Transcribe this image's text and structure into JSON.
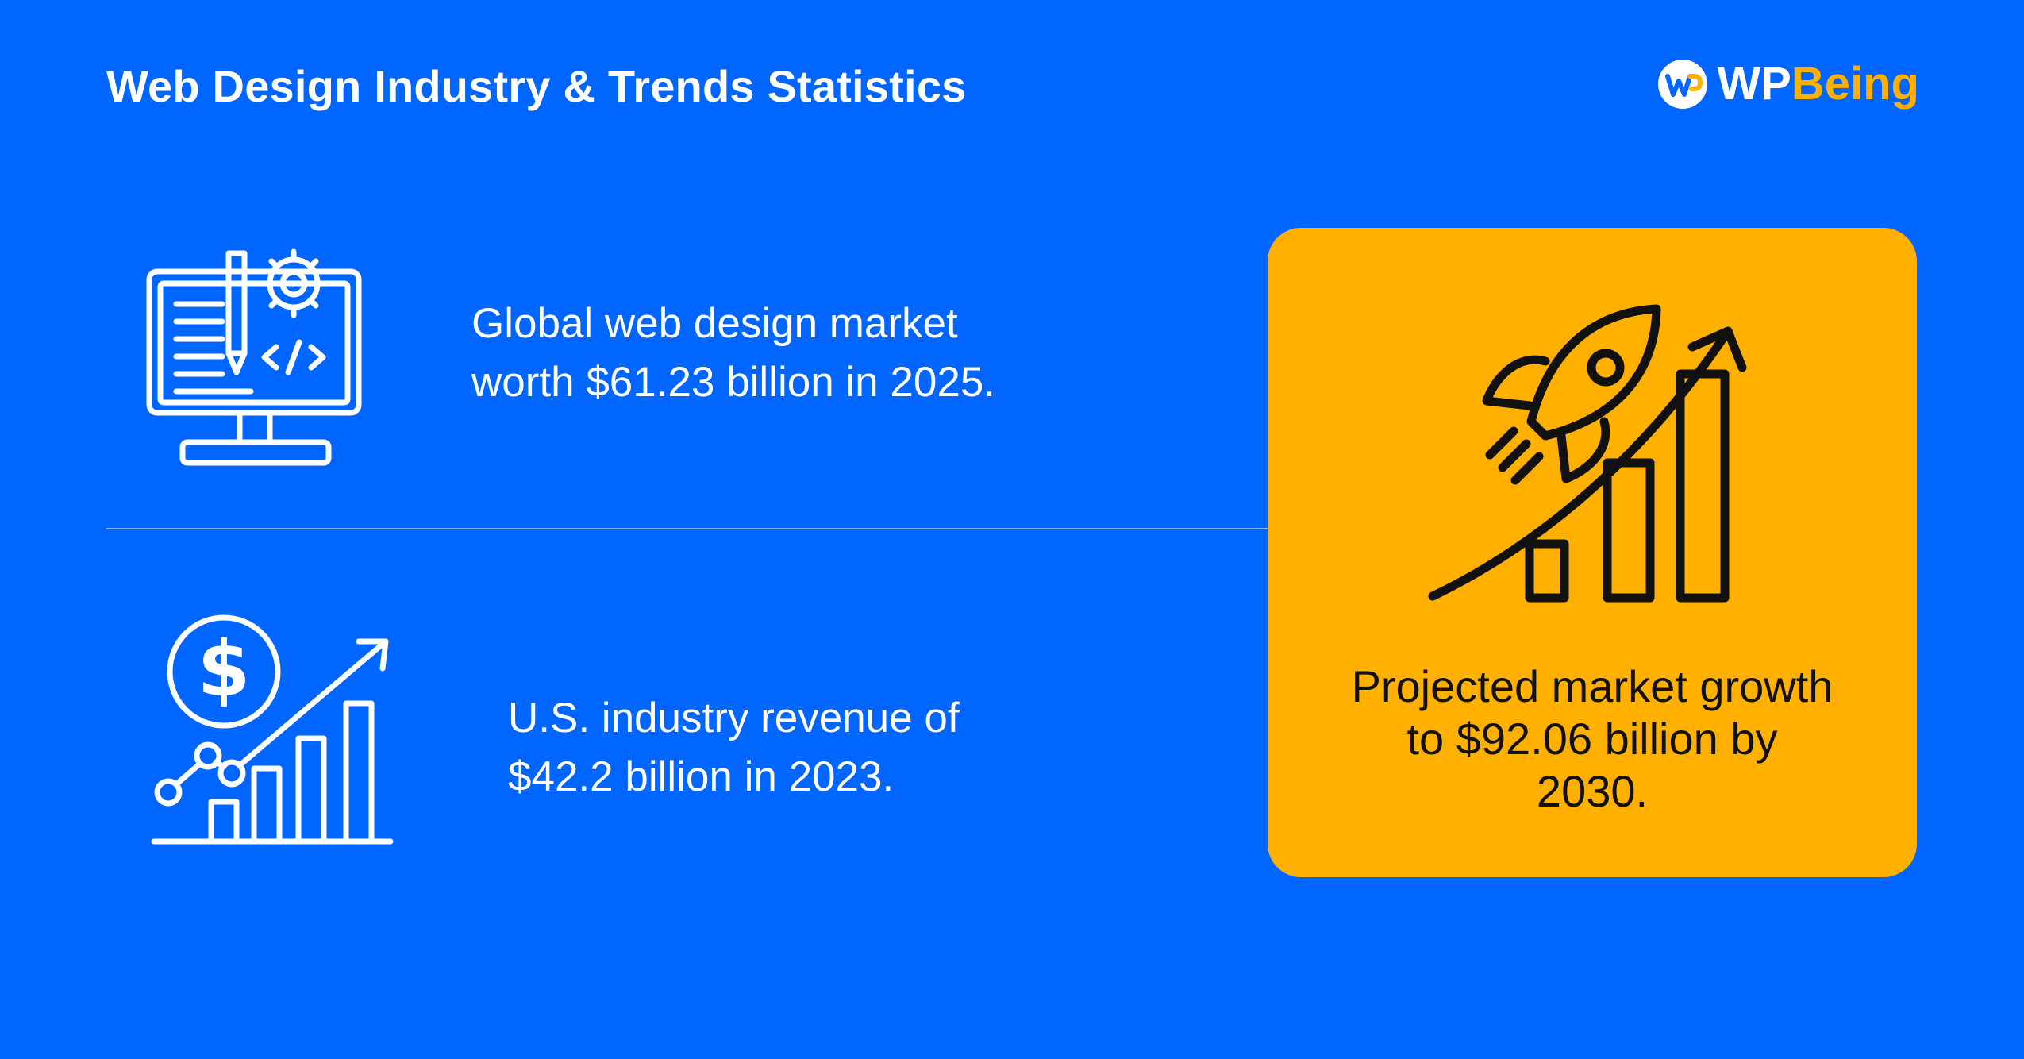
{
  "header": {
    "title": "Web Design Industry & Trends Statistics",
    "brand": {
      "name_part_1": "WP",
      "name_part_2": "Being",
      "colors": {
        "white": "#ffffff",
        "accent": "#ffb000"
      }
    }
  },
  "stats": [
    {
      "icon": "computer-design-code-icon",
      "lines": [
        "Global web design market",
        "worth $61.23 billion in 2025."
      ]
    },
    {
      "icon": "dollar-growth-chart-icon",
      "lines": [
        "U.S. industry revenue of",
        "$42.2 billion in 2023."
      ]
    }
  ],
  "highlight": {
    "icon": "rocket-growth-chart-icon",
    "lines": [
      "Projected market growth",
      "to $92.06 billion by",
      "2030."
    ]
  },
  "colors": {
    "background": "#0066ff",
    "card": "#ffb000",
    "card_text": "#111111",
    "text": "#ffffff"
  }
}
